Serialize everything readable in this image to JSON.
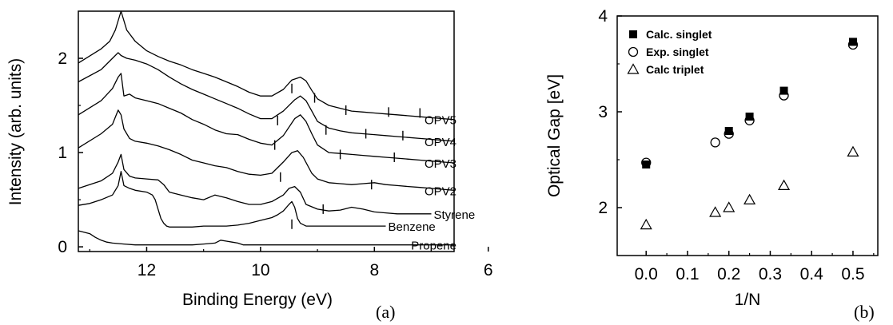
{
  "chart_data": [
    {
      "type": "line",
      "panel_label": "(a)",
      "xlabel": "Binding Energy (eV)",
      "ylabel": "Intensity (arb. units)",
      "xlim": [
        13.2,
        6.6
      ],
      "ylim": [
        -0.05,
        2.5
      ],
      "x_reversed": true,
      "xticks": [
        12,
        10,
        8,
        6
      ],
      "yticks": [
        0,
        1,
        2
      ],
      "grid": false,
      "series": [
        {
          "name": "OPV5",
          "x": [
            13.2,
            12.8,
            12.65,
            12.55,
            12.45,
            12.35,
            12.2,
            12.0,
            11.8,
            11.6,
            11.4,
            11.2,
            11.0,
            10.8,
            10.6,
            10.4,
            10.2,
            10.0,
            9.8,
            9.6,
            9.45,
            9.3,
            9.2,
            9.1,
            9.0,
            8.8,
            8.6,
            8.4,
            8.2,
            8.0,
            7.8,
            7.6,
            7.4,
            7.2,
            7.0,
            6.8,
            6.6
          ],
          "y": [
            1.95,
            2.1,
            2.18,
            2.3,
            2.55,
            2.3,
            2.18,
            2.08,
            2.02,
            1.97,
            1.93,
            1.88,
            1.84,
            1.8,
            1.75,
            1.7,
            1.64,
            1.6,
            1.6,
            1.67,
            1.77,
            1.8,
            1.76,
            1.66,
            1.57,
            1.5,
            1.47,
            1.44,
            1.43,
            1.42,
            1.41,
            1.4,
            1.39,
            1.38,
            1.37,
            1.36,
            1.35
          ]
        },
        {
          "name": "OPV4",
          "x": [
            13.2,
            12.8,
            12.6,
            12.5,
            12.45,
            12.35,
            12.2,
            12.0,
            11.8,
            11.6,
            11.4,
            11.2,
            11.0,
            10.8,
            10.6,
            10.4,
            10.2,
            10.0,
            9.8,
            9.6,
            9.4,
            9.3,
            9.2,
            9.1,
            9.0,
            8.8,
            8.6,
            8.4,
            8.2,
            8.0,
            7.8,
            7.6,
            7.4,
            7.2,
            7.0,
            6.8,
            6.6
          ],
          "y": [
            1.75,
            1.88,
            2.0,
            2.06,
            2.03,
            2.0,
            1.98,
            1.94,
            1.88,
            1.8,
            1.73,
            1.67,
            1.62,
            1.57,
            1.52,
            1.47,
            1.41,
            1.36,
            1.36,
            1.44,
            1.56,
            1.6,
            1.55,
            1.44,
            1.33,
            1.26,
            1.23,
            1.21,
            1.2,
            1.19,
            1.18,
            1.17,
            1.16,
            1.15,
            1.14,
            1.13,
            1.12
          ]
        },
        {
          "name": "OPV3",
          "x": [
            13.2,
            12.8,
            12.6,
            12.5,
            12.45,
            12.4,
            12.3,
            12.2,
            12.0,
            11.8,
            11.6,
            11.4,
            11.2,
            11.0,
            10.8,
            10.6,
            10.4,
            10.2,
            10.0,
            9.8,
            9.6,
            9.4,
            9.3,
            9.2,
            9.1,
            9.0,
            8.8,
            8.6,
            8.4,
            8.2,
            8.0,
            7.8,
            7.6,
            7.4,
            7.2,
            7.0,
            6.8,
            6.6
          ],
          "y": [
            1.4,
            1.55,
            1.68,
            1.8,
            1.84,
            1.6,
            1.62,
            1.58,
            1.55,
            1.52,
            1.47,
            1.42,
            1.35,
            1.3,
            1.24,
            1.2,
            1.19,
            1.14,
            1.1,
            1.08,
            1.18,
            1.36,
            1.4,
            1.33,
            1.2,
            1.08,
            1.0,
            0.99,
            0.98,
            0.97,
            0.96,
            0.95,
            0.94,
            0.93,
            0.92,
            0.91,
            0.9,
            0.89
          ]
        },
        {
          "name": "OPV2",
          "x": [
            13.2,
            12.8,
            12.6,
            12.5,
            12.45,
            12.4,
            12.3,
            12.2,
            12.0,
            11.8,
            11.6,
            11.4,
            11.2,
            11.0,
            10.8,
            10.6,
            10.4,
            10.2,
            10.0,
            9.8,
            9.6,
            9.45,
            9.35,
            9.25,
            9.1,
            9.0,
            8.8,
            8.6,
            8.4,
            8.2,
            8.0,
            7.8,
            7.6,
            7.4,
            7.2,
            7.0,
            6.8,
            6.6
          ],
          "y": [
            1.05,
            1.2,
            1.3,
            1.45,
            1.4,
            1.25,
            1.15,
            1.12,
            1.1,
            1.07,
            1.03,
            0.98,
            0.92,
            0.89,
            0.86,
            0.84,
            0.8,
            0.77,
            0.76,
            0.78,
            0.9,
            1.0,
            1.02,
            0.95,
            0.78,
            0.72,
            0.68,
            0.67,
            0.66,
            0.67,
            0.68,
            0.66,
            0.65,
            0.64,
            0.63,
            0.62,
            0.61,
            0.6
          ]
        },
        {
          "name": "Styrene",
          "x": [
            13.2,
            12.8,
            12.6,
            12.5,
            12.45,
            12.4,
            12.3,
            12.2,
            12.0,
            11.8,
            11.7,
            11.6,
            11.4,
            11.2,
            11.0,
            10.8,
            10.6,
            10.4,
            10.2,
            10.0,
            9.8,
            9.6,
            9.5,
            9.4,
            9.3,
            9.2,
            9.0,
            8.8,
            8.6,
            8.4,
            8.2,
            8.0,
            7.8,
            7.6,
            7.4,
            7.2,
            7.0
          ],
          "y": [
            0.62,
            0.7,
            0.78,
            0.9,
            0.98,
            0.82,
            0.75,
            0.73,
            0.72,
            0.71,
            0.66,
            0.58,
            0.55,
            0.52,
            0.5,
            0.55,
            0.52,
            0.48,
            0.45,
            0.45,
            0.48,
            0.55,
            0.62,
            0.64,
            0.58,
            0.45,
            0.4,
            0.38,
            0.39,
            0.42,
            0.4,
            0.37,
            0.36,
            0.35,
            0.35,
            0.35,
            0.35
          ]
        },
        {
          "name": "Benzene",
          "x": [
            13.2,
            13.0,
            12.8,
            12.6,
            12.5,
            12.45,
            12.4,
            12.3,
            12.2,
            12.0,
            11.9,
            11.85,
            11.8,
            11.75,
            11.7,
            11.65,
            11.6,
            11.4,
            11.2,
            11.0,
            10.8,
            10.6,
            10.4,
            10.2,
            10.0,
            9.8,
            9.7,
            9.6,
            9.5,
            9.45,
            9.4,
            9.35,
            9.3,
            9.2,
            9.0,
            8.8,
            8.6,
            8.4,
            8.2,
            8.0,
            7.8
          ],
          "y": [
            0.44,
            0.46,
            0.5,
            0.55,
            0.65,
            0.8,
            0.65,
            0.62,
            0.6,
            0.58,
            0.55,
            0.5,
            0.4,
            0.3,
            0.25,
            0.22,
            0.21,
            0.21,
            0.21,
            0.22,
            0.22,
            0.22,
            0.23,
            0.25,
            0.28,
            0.31,
            0.34,
            0.38,
            0.45,
            0.48,
            0.42,
            0.3,
            0.25,
            0.22,
            0.22,
            0.22,
            0.22,
            0.22,
            0.22,
            0.22,
            0.22
          ]
        },
        {
          "name": "Propene",
          "x": [
            13.2,
            13.0,
            12.9,
            12.8,
            12.7,
            12.6,
            12.4,
            12.2,
            12.0,
            11.8,
            11.6,
            11.4,
            11.2,
            11.0,
            10.8,
            10.7,
            10.6,
            10.5,
            10.4,
            10.3,
            10.2,
            10.0,
            9.8,
            9.6,
            9.4,
            9.2,
            9.0,
            8.8,
            8.6,
            8.4,
            8.2,
            8.0,
            7.8,
            7.6,
            7.4,
            7.2,
            7.0,
            6.8,
            6.6
          ],
          "y": [
            0.17,
            0.14,
            0.1,
            0.07,
            0.05,
            0.04,
            0.03,
            0.02,
            0.02,
            0.02,
            0.02,
            0.02,
            0.02,
            0.03,
            0.04,
            0.07,
            0.06,
            0.05,
            0.04,
            0.02,
            0.02,
            0.02,
            0.02,
            0.02,
            0.02,
            0.02,
            0.02,
            0.02,
            0.02,
            0.02,
            0.02,
            0.02,
            0.02,
            0.02,
            0.02,
            0.02,
            0.02,
            0.02,
            0.02
          ]
        }
      ],
      "vertical_markers": [
        {
          "x": 9.05,
          "y": 1.58
        },
        {
          "x": 9.45,
          "y": 1.68
        },
        {
          "x": 8.5,
          "y": 1.45
        },
        {
          "x": 7.75,
          "y": 1.43
        },
        {
          "x": 7.2,
          "y": 1.42
        },
        {
          "x": 9.7,
          "y": 1.34
        },
        {
          "x": 8.85,
          "y": 1.24
        },
        {
          "x": 8.15,
          "y": 1.2
        },
        {
          "x": 7.5,
          "y": 1.18
        },
        {
          "x": 9.75,
          "y": 1.08
        },
        {
          "x": 8.6,
          "y": 0.98
        },
        {
          "x": 7.65,
          "y": 0.95
        },
        {
          "x": 9.65,
          "y": 0.74
        },
        {
          "x": 8.05,
          "y": 0.66
        },
        {
          "x": 8.9,
          "y": 0.4
        },
        {
          "x": 9.45,
          "y": 0.24
        }
      ]
    },
    {
      "type": "scatter",
      "panel_label": "(b)",
      "xlabel": "1/N",
      "ylabel": "Optical Gap [eV]",
      "xlim": [
        -0.07,
        0.56
      ],
      "ylim": [
        1.5,
        4.0
      ],
      "xticks": [
        "0.0",
        "0.1",
        "0.2",
        "0.3",
        "0.4",
        "0.5"
      ],
      "yticks": [
        "2",
        "3",
        "4"
      ],
      "grid": false,
      "legend_position": "top-left",
      "series": [
        {
          "name": "Calc. singlet",
          "marker": "filled-square",
          "x": [
            0.0,
            0.2,
            0.25,
            0.333,
            0.5
          ],
          "y": [
            2.45,
            2.8,
            2.95,
            3.22,
            3.73
          ]
        },
        {
          "name": "Exp. singlet",
          "marker": "open-circle",
          "x": [
            0.0,
            0.167,
            0.2,
            0.25,
            0.333,
            0.5
          ],
          "y": [
            2.47,
            2.68,
            2.77,
            2.91,
            3.17,
            3.7
          ]
        },
        {
          "name": "Calc triplet",
          "marker": "open-triangle",
          "x": [
            0.0,
            0.167,
            0.2,
            0.25,
            0.333,
            0.5
          ],
          "y": [
            1.82,
            1.95,
            2.0,
            2.08,
            2.23,
            2.58
          ]
        }
      ]
    }
  ]
}
